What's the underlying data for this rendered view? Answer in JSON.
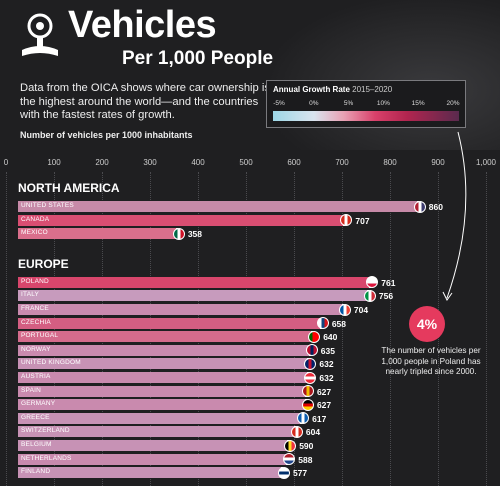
{
  "header": {
    "title": "Vehicles",
    "subtitle": "Per 1,000 People",
    "description": "Data from the OICA shows where car ownership is the highest around the world—and the countries with the fastest rates of growth.",
    "axis_caption": "Number of vehicles per 1000 inhabitants"
  },
  "legend": {
    "title": "Annual Growth Rate",
    "years": "2015–2020",
    "ticks": [
      "-5%",
      "0%",
      "5%",
      "10%",
      "15%",
      "20%"
    ],
    "colors": [
      "#9dd7e6",
      "#d9e3ee",
      "#e8a1b4",
      "#d8406a",
      "#b2254f",
      "#5a2a4e"
    ]
  },
  "callout": {
    "value": "4%",
    "text": "The number of vehicles per 1,000 people in Poland has nearly tripled since 2000."
  },
  "chart_data": {
    "type": "bar",
    "orientation": "horizontal",
    "xlim": [
      0,
      1000
    ],
    "x_ticks": [
      "0",
      "100",
      "200",
      "300",
      "400",
      "500",
      "600",
      "700",
      "800",
      "900",
      "1,000"
    ],
    "groups": [
      {
        "region": "NORTH AMERICA",
        "items": [
          {
            "country": "UNITED STATES",
            "value": 860,
            "color": "#c78aa8",
            "flag": "us"
          },
          {
            "country": "CANADA",
            "value": 707,
            "color": "#d94e72",
            "flag": "ca"
          },
          {
            "country": "MEXICO",
            "value": 358,
            "color": "#da6f8c",
            "flag": "mx"
          }
        ]
      },
      {
        "region": "EUROPE",
        "items": [
          {
            "country": "POLAND",
            "value": 761,
            "color": "#d8466c",
            "flag": "pl"
          },
          {
            "country": "ITALY",
            "value": 756,
            "color": "#c79bbd",
            "flag": "it"
          },
          {
            "country": "FRANCE",
            "value": 704,
            "color": "#c98aae",
            "flag": "fr"
          },
          {
            "country": "CZECHIA",
            "value": 658,
            "color": "#d45e82",
            "flag": "cz"
          },
          {
            "country": "PORTUGAL",
            "value": 640,
            "color": "#d56b8c",
            "flag": "pt"
          },
          {
            "country": "NORWAY",
            "value": 635,
            "color": "#c98aae",
            "flag": "no"
          },
          {
            "country": "UNITED KINGDOM",
            "value": 632,
            "color": "#c792b5",
            "flag": "gb"
          },
          {
            "country": "AUSTRIA",
            "value": 632,
            "color": "#c98aae",
            "flag": "at"
          },
          {
            "country": "SPAIN",
            "value": 627,
            "color": "#c98aae",
            "flag": "es"
          },
          {
            "country": "GERMANY",
            "value": 627,
            "color": "#c98aae",
            "flag": "de"
          },
          {
            "country": "GREECE",
            "value": 617,
            "color": "#c792b5",
            "flag": "gr"
          },
          {
            "country": "SWITZERLAND",
            "value": 604,
            "color": "#c792b5",
            "flag": "ch"
          },
          {
            "country": "BELGIUM",
            "value": 590,
            "color": "#c792b5",
            "flag": "be"
          },
          {
            "country": "NETHERLANDS",
            "value": 588,
            "color": "#c98aae",
            "flag": "nl"
          },
          {
            "country": "FINLAND",
            "value": 577,
            "color": "#c792b5",
            "flag": "fi"
          }
        ]
      }
    ]
  }
}
